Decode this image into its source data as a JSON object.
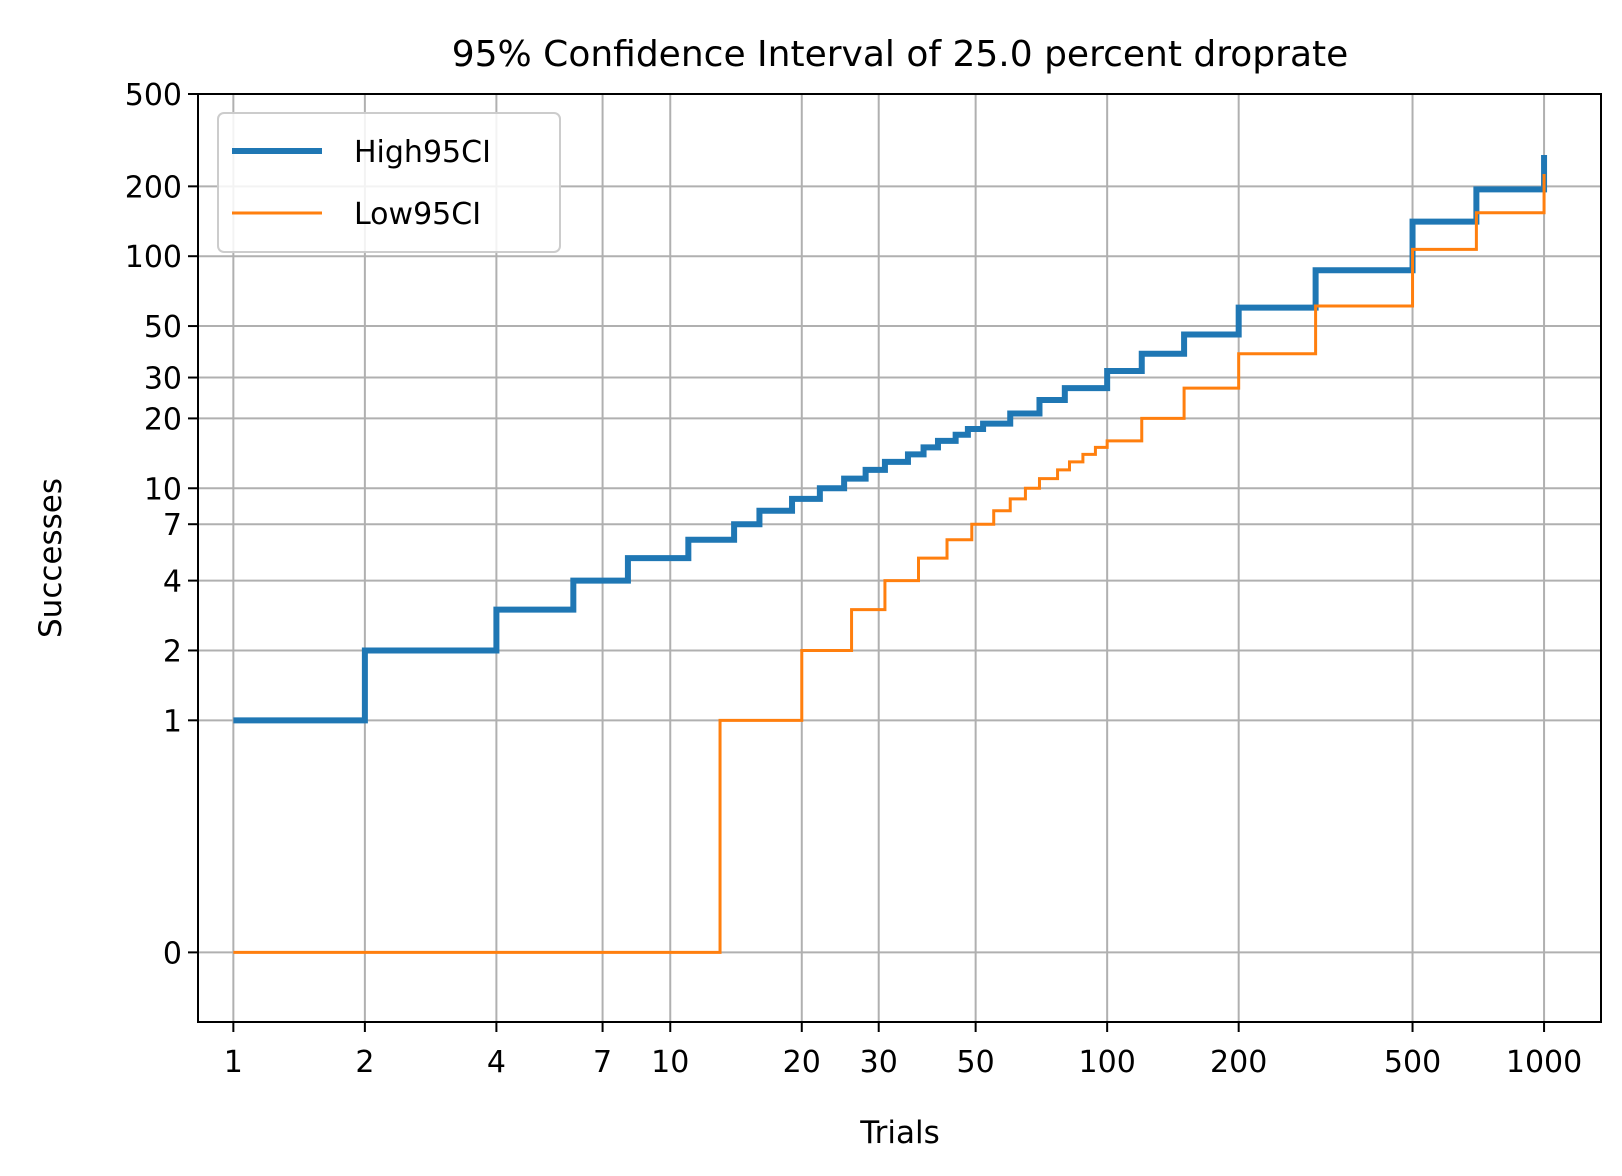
{
  "chart_data": {
    "type": "line",
    "title": "95% Confidence Interval of 25.0 percent droprate",
    "xlabel": "Trials",
    "ylabel": "Successes",
    "x_scale": "log",
    "y_scale": "symlog",
    "x_ticks": [
      1,
      2,
      4,
      7,
      10,
      20,
      30,
      50,
      100,
      200,
      500,
      1000
    ],
    "x_tick_labels": [
      "1",
      "2",
      "4",
      "7",
      "10",
      "20",
      "30",
      "50",
      "100",
      "200",
      "500",
      "1000"
    ],
    "y_ticks": [
      0,
      1,
      2,
      4,
      7,
      10,
      20,
      30,
      50,
      100,
      200,
      500
    ],
    "y_tick_labels": [
      "0",
      "1",
      "2",
      "4",
      "7",
      "10",
      "20",
      "30",
      "50",
      "100",
      "200",
      "500"
    ],
    "xlim": [
      0.83,
      1350
    ],
    "ylim": [
      -0.3,
      500
    ],
    "grid": true,
    "legend_position": "upper left",
    "series": [
      {
        "name": "High95CI",
        "color": "#1f77b4",
        "style": "steps",
        "points": [
          [
            1,
            1
          ],
          [
            2,
            2
          ],
          [
            4,
            3
          ],
          [
            6,
            4
          ],
          [
            8,
            5
          ],
          [
            11,
            6
          ],
          [
            14,
            7
          ],
          [
            16,
            8
          ],
          [
            19,
            9
          ],
          [
            22,
            10
          ],
          [
            25,
            11
          ],
          [
            28,
            12
          ],
          [
            31,
            13
          ],
          [
            35,
            14
          ],
          [
            38,
            15
          ],
          [
            41,
            16
          ],
          [
            45,
            17
          ],
          [
            48,
            18
          ],
          [
            52,
            19
          ],
          [
            60,
            21
          ],
          [
            70,
            24
          ],
          [
            80,
            27
          ],
          [
            100,
            32
          ],
          [
            120,
            38
          ],
          [
            150,
            46
          ],
          [
            200,
            60
          ],
          [
            300,
            87
          ],
          [
            500,
            141
          ],
          [
            700,
            194
          ],
          [
            1000,
            273
          ]
        ]
      },
      {
        "name": "Low95CI",
        "color": "#ff7f0e",
        "style": "steps",
        "points": [
          [
            1,
            0
          ],
          [
            13,
            1
          ],
          [
            20,
            2
          ],
          [
            26,
            3
          ],
          [
            31,
            4
          ],
          [
            37,
            5
          ],
          [
            43,
            6
          ],
          [
            49,
            7
          ],
          [
            55,
            8
          ],
          [
            60,
            9
          ],
          [
            65,
            10
          ],
          [
            70,
            11
          ],
          [
            77,
            12
          ],
          [
            82,
            13
          ],
          [
            88,
            14
          ],
          [
            94,
            15
          ],
          [
            100,
            16
          ],
          [
            120,
            20
          ],
          [
            150,
            27
          ],
          [
            200,
            38
          ],
          [
            300,
            61
          ],
          [
            500,
            107
          ],
          [
            700,
            154
          ],
          [
            1000,
            226
          ]
        ]
      }
    ]
  }
}
